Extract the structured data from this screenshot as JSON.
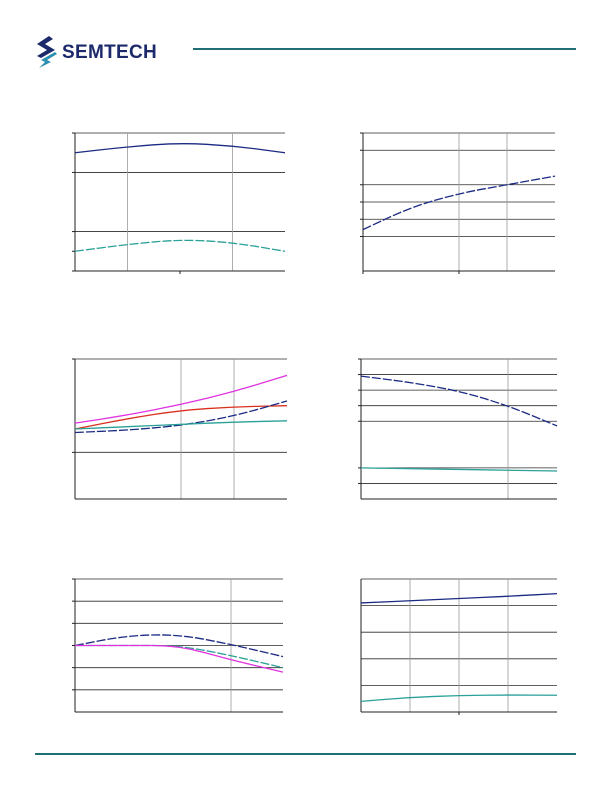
{
  "header": {
    "brand_name": "SEMTECH",
    "logo_icon": "semtech-s-wave-logo",
    "colors": {
      "brand": "#1c2a6b",
      "rule": "#1f6f75",
      "logo_accent": "#2d8fb0"
    }
  },
  "chart_data": [
    {
      "id": "top-left",
      "type": "line",
      "xlim": [
        0,
        4
      ],
      "ylim": [
        0,
        7
      ],
      "y_grid": [
        2,
        5,
        7
      ],
      "x_grid": [
        1,
        3
      ],
      "y_ticks": [
        0,
        1,
        2,
        5,
        7
      ],
      "x_ticks": [
        2
      ],
      "series": [
        {
          "color": "#1b2a83",
          "dash": false,
          "x": [
            0,
            1,
            2,
            3,
            4
          ],
          "y": [
            6.0,
            6.3,
            6.5,
            6.35,
            6.0
          ]
        },
        {
          "color": "#2aa198",
          "dash": true,
          "x": [
            0,
            1,
            2,
            3,
            4
          ],
          "y": [
            1.0,
            1.35,
            1.6,
            1.45,
            1.0
          ]
        }
      ]
    },
    {
      "id": "top-right",
      "type": "line",
      "xlim": [
        0,
        4
      ],
      "ylim": [
        0,
        8
      ],
      "y_grid": [
        2,
        3,
        4,
        5,
        7,
        8
      ],
      "x_grid": [
        2,
        3
      ],
      "y_ticks": [
        2,
        3,
        4,
        5,
        7,
        8
      ],
      "x_ticks": [
        0,
        2
      ],
      "series": [
        {
          "color": "#1b2a83",
          "dash": true,
          "x": [
            0,
            1,
            2,
            3,
            4
          ],
          "y": [
            2.4,
            3.7,
            4.5,
            5.0,
            5.5
          ]
        }
      ]
    },
    {
      "id": "mid-left",
      "type": "line",
      "xlim": [
        0,
        4
      ],
      "ylim": [
        0,
        6
      ],
      "y_grid": [
        2,
        6
      ],
      "x_grid": [
        2,
        3
      ],
      "y_ticks": [
        2,
        6
      ],
      "x_ticks": [],
      "series": [
        {
          "color": "#e032e0",
          "dash": false,
          "x": [
            0,
            1,
            2,
            3,
            4
          ],
          "y": [
            3.25,
            3.6,
            4.05,
            4.6,
            5.3
          ]
        },
        {
          "color": "#d9301e",
          "dash": false,
          "x": [
            0,
            1,
            2,
            3,
            4
          ],
          "y": [
            3.0,
            3.45,
            3.8,
            3.95,
            4.0
          ]
        },
        {
          "color": "#1b2a83",
          "dash": true,
          "x": [
            0,
            1,
            2,
            3,
            4
          ],
          "y": [
            2.85,
            2.95,
            3.15,
            3.55,
            4.2
          ]
        },
        {
          "color": "#2aa198",
          "dash": false,
          "x": [
            0,
            1,
            2,
            3,
            4
          ],
          "y": [
            3.0,
            3.1,
            3.2,
            3.3,
            3.35
          ]
        }
      ]
    },
    {
      "id": "mid-right",
      "type": "line",
      "xlim": [
        0,
        4
      ],
      "ylim": [
        0,
        9
      ],
      "y_grid": [
        1,
        2,
        5,
        6,
        7,
        8,
        9
      ],
      "x_grid": [
        3
      ],
      "y_ticks": [
        1,
        2,
        5,
        6,
        7,
        8,
        9
      ],
      "x_ticks": [],
      "series": [
        {
          "color": "#1b2a83",
          "dash": true,
          "x": [
            0,
            1,
            2,
            3,
            4
          ],
          "y": [
            7.9,
            7.5,
            6.95,
            6.0,
            4.7
          ]
        },
        {
          "color": "#2aa198",
          "dash": false,
          "x": [
            0,
            1,
            2,
            3,
            4
          ],
          "y": [
            2.0,
            1.95,
            1.9,
            1.85,
            1.8
          ]
        }
      ]
    },
    {
      "id": "bottom-left",
      "type": "line",
      "xlim": [
        0,
        4
      ],
      "ylim": [
        0,
        6
      ],
      "y_grid": [
        1,
        2,
        3,
        4,
        5,
        6
      ],
      "x_grid": [
        3
      ],
      "y_ticks": [
        1,
        2,
        3,
        4,
        5,
        6
      ],
      "x_ticks": [],
      "series": [
        {
          "color": "#1b2a83",
          "dash": true,
          "x": [
            0,
            1,
            2,
            3,
            4
          ],
          "y": [
            3.0,
            3.45,
            3.5,
            3.05,
            2.5
          ]
        },
        {
          "color": "#2aa198",
          "dash": true,
          "x": [
            0,
            1,
            2,
            3,
            4
          ],
          "y": [
            3.0,
            3.0,
            3.0,
            2.55,
            2.0
          ]
        },
        {
          "color": "#e032e0",
          "dash": false,
          "x": [
            0,
            1,
            2,
            3,
            4
          ],
          "y": [
            3.0,
            3.0,
            3.0,
            2.35,
            1.8
          ]
        }
      ]
    },
    {
      "id": "bottom-right",
      "type": "line",
      "xlim": [
        0,
        4
      ],
      "ylim": [
        0,
        5
      ],
      "y_grid": [
        1,
        2,
        3,
        4,
        5
      ],
      "x_grid": [
        1,
        2,
        3
      ],
      "y_ticks": [],
      "x_ticks": [
        2
      ],
      "series": [
        {
          "color": "#1b2a83",
          "dash": false,
          "x": [
            0,
            1,
            2,
            3,
            4
          ],
          "y": [
            4.1,
            4.18,
            4.27,
            4.35,
            4.45
          ]
        },
        {
          "color": "#2aa198",
          "dash": false,
          "x": [
            0,
            1,
            2,
            3,
            4
          ],
          "y": [
            0.4,
            0.55,
            0.62,
            0.64,
            0.63
          ]
        }
      ]
    }
  ]
}
